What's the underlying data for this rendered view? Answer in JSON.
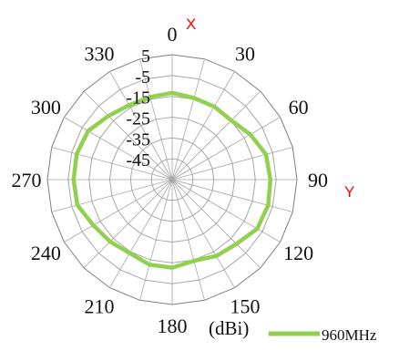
{
  "chart_data": {
    "type": "radar",
    "angle_ticks": [
      "0",
      "30",
      "60",
      "90",
      "120",
      "150",
      "180",
      "210",
      "240",
      "270",
      "300",
      "330"
    ],
    "angles_deg": [
      0,
      15,
      30,
      45,
      60,
      75,
      90,
      105,
      120,
      135,
      150,
      165,
      180,
      195,
      210,
      225,
      240,
      255,
      270,
      285,
      300,
      315,
      330,
      345
    ],
    "radial_ticks": [
      "5",
      "-5",
      "-15",
      "-25",
      "-35",
      "-45"
    ],
    "rlim": [
      -55,
      5
    ],
    "unit_label": "(dBi)",
    "axis_markers": {
      "x": "X",
      "y": "Y"
    },
    "series": [
      {
        "name": "960MHz",
        "color": "#92d050",
        "values": [
          -13.3,
          -14.4,
          -14.5,
          -14.8,
          -11.6,
          -8.3,
          -7.8,
          -7.2,
          -7.8,
          -11.3,
          -12.6,
          -14.6,
          -12.7,
          -12.7,
          -14.2,
          -12.8,
          -11.2,
          -7.8,
          -7.6,
          -7.5,
          -8.3,
          -11.7,
          -13.7,
          -13.9
        ]
      }
    ],
    "legend": "bottom-right"
  }
}
